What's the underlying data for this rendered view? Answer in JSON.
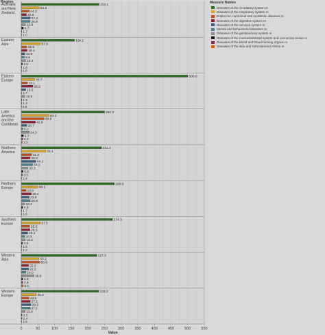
{
  "header": {
    "region_label": "Region"
  },
  "chart_data": {
    "type": "bar",
    "orientation": "horizontal",
    "title": "",
    "xlabel": "Value",
    "xlim": [
      0,
      550
    ],
    "xticks": [
      0,
      25,
      50,
      75,
      100,
      125,
      150,
      175,
      200,
      225,
      250,
      275,
      300,
      325,
      350,
      375,
      400,
      425,
      450,
      475,
      500,
      525,
      550
    ],
    "grid": true,
    "legend_placement": "top-right",
    "legend_title": "Measure Names",
    "series": [
      {
        "name": "Diseases of the circulatory system m",
        "color": "#2e6b22"
      },
      {
        "name": "Diseases of the respiratory system m",
        "color": "#d4a62a"
      },
      {
        "name": "Endocrine, nutritional and metabolic diseases m",
        "color": "#c0501f"
      },
      {
        "name": "Diseases of the digestive system m",
        "color": "#8c2035"
      },
      {
        "name": "Diseases of the nervous system m",
        "color": "#3b5f7d"
      },
      {
        "name": "Mental and behavioural disorders m",
        "color": "#4a7f8c"
      },
      {
        "name": "Diseases of the genitourinary system m",
        "color": "#8c8c8c"
      },
      {
        "name": "Diseases of the musculoskeletal system and connective tissue m",
        "color": "#1a1a1a"
      },
      {
        "name": "Diseases of the blood and blood-forming organs m",
        "color": "#7d2e59"
      },
      {
        "name": "Diseases of the skin and subcutaneous tissue m",
        "color": "#d35a1e"
      }
    ],
    "categories": [
      {
        "label": [
          "Australia",
          "and New",
          "Zealand"
        ],
        "values": [
          234.1,
          54.2,
          24.3,
          15.6,
          27.4,
          26.8,
          12.8,
          6.7,
          1.7,
          1.0
        ]
      },
      {
        "label": [
          "Eastern",
          "Asia"
        ],
        "values": [
          160.1,
          57.9,
          16.9,
          18.2,
          10.9,
          9.6,
          13.4,
          3.5,
          1.8,
          1.0
        ]
      },
      {
        "label": [
          "Eastern",
          "Europe"
        ],
        "values": [
          500.6,
          40.7,
          19.1,
          35.2,
          13.5,
          1.7,
          10.9,
          1.9,
          1.3,
          0.5
        ]
      },
      {
        "label": [
          "Latin",
          "America",
          "and the",
          "Caribbean"
        ],
        "values": [
          250.3,
          83.2,
          68.9,
          42.6,
          16.7,
          5.2,
          24.3,
          6.7,
          5.0,
          3.2
        ]
      },
      {
        "label": [
          "Northern",
          "America"
        ],
        "values": [
          241.4,
          74.1,
          31.3,
          26.8,
          44.1,
          34.1,
          20.3,
          5.8,
          3.5,
          1.4
        ]
      },
      {
        "label": [
          "Northern",
          "Europe"
        ],
        "values": [
          280.0,
          50.1,
          14.6,
          30.4,
          23.9,
          26.9,
          10.3,
          4.9,
          1.7,
          1.0
        ]
      },
      {
        "label": [
          "Southern",
          "Europe"
        ],
        "values": [
          274.3,
          57.5,
          25.3,
          26.3,
          19.4,
          10.5,
          12.4,
          3.9,
          1.5,
          1.2
        ]
      },
      {
        "label": [
          "Western",
          "Asia"
        ],
        "values": [
          227.3,
          53.2,
          55.9,
          22.2,
          22.2,
          14.0,
          38.6,
          4.8,
          4.8,
          6.0
        ]
      },
      {
        "label": [
          "Western",
          "Europe"
        ],
        "values": [
          233.2,
          45.2,
          23.6,
          27.1,
          29.2,
          27.1,
          12.0,
          2.5,
          2.4,
          1.6
        ]
      }
    ]
  }
}
